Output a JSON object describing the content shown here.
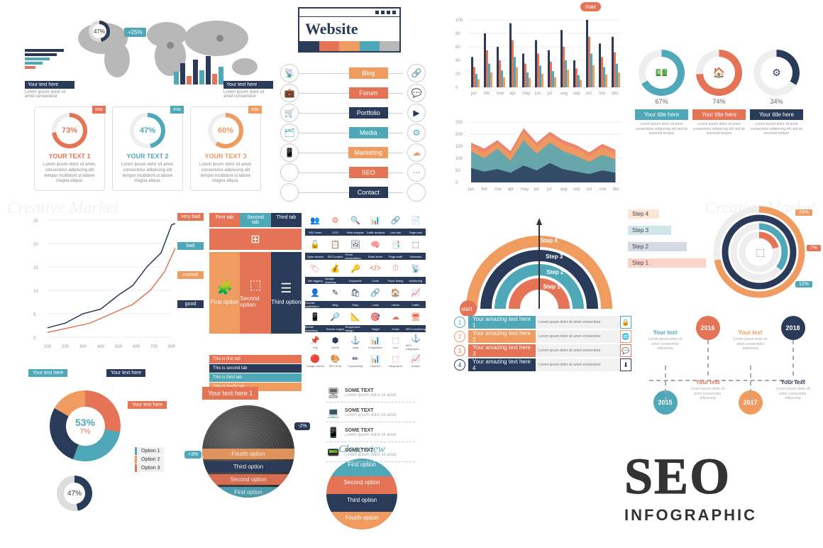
{
  "colors": {
    "navy": "#2a3b5a",
    "coral": "#e57355",
    "teal": "#4fa8b8",
    "orange": "#f09b5f",
    "grey": "#b8b8b8",
    "light_grey": "#dcdcdc",
    "dark": "#333333",
    "bg": "#ffffff"
  },
  "watermark": "Creative Market",
  "map": {
    "ring_pct": "47%",
    "badge": "+25%",
    "hbar_widths": [
      55,
      45,
      35,
      25,
      15
    ],
    "hbar_colors": [
      "#2a3b5a",
      "#2a3b5a",
      "#4fa8b8",
      "#4fa8b8",
      "#e57355"
    ],
    "minibar_heights": [
      18,
      30,
      12,
      35,
      20,
      40,
      15,
      25
    ],
    "minibar_colors": [
      "#4fa8b8",
      "#2a3b5a",
      "#e57355",
      "#2a3b5a",
      "#4fa8b8",
      "#2a3b5a",
      "#e57355",
      "#4fa8b8"
    ],
    "label_hdr1": "Your text here",
    "label_hdr2": "Your text here",
    "label_desc": "Lorem ipsum dolor sit amet consectetur"
  },
  "browser": {
    "title": "Website",
    "palette": [
      "#2a3b5a",
      "#e57355",
      "#f09b5f",
      "#4fa8b8",
      "#b8b8b8"
    ]
  },
  "vmenu": [
    {
      "icon_l": "📡",
      "label": "Blog",
      "color": "#f09b5f",
      "icon_r": "🔗"
    },
    {
      "icon_l": "💼",
      "label": "Forum",
      "color": "#e57355",
      "icon_r": "💬"
    },
    {
      "icon_l": "🛒",
      "label": "Portfolio",
      "color": "#2a3b5a",
      "icon_r": "▶"
    },
    {
      "icon_l": "🗂",
      "label": "Media",
      "color": "#4fa8b8",
      "icon_r": "⚙"
    },
    {
      "icon_l": "📱",
      "label": "Marketing",
      "color": "#f09b5f",
      "icon_r": "☁"
    },
    {
      "icon_l": "",
      "label": "SEO",
      "color": "#e57355",
      "icon_r": "⋯"
    },
    {
      "icon_l": "",
      "label": "Contact",
      "color": "#2a3b5a",
      "icon_r": ""
    }
  ],
  "pct_cards": [
    {
      "pct": "73%",
      "title": "YOUR TEXT 1",
      "color": "#e57355",
      "tag": "mix",
      "desc": "Lorem ipsum dolor sit amet, consectetur adipiscing elit tempor incididunt ut labore magna aliqua."
    },
    {
      "pct": "47%",
      "title": "YOUR TEXT 2",
      "color": "#4fa8b8",
      "tag": "mix",
      "desc": "Lorem ipsum dolor sit amet, consectetur adipiscing elit tempor incididunt ut labore magna aliqua."
    },
    {
      "pct": "60%",
      "title": "YOUR TEXT 3",
      "color": "#f09b5f",
      "tag": "mix",
      "desc": "Lorem ipsum dolor sit amet, consectetur adipiscing elit tempor incididunt ut labore magna aliqua."
    }
  ],
  "line_chart": {
    "x_ticks": [
      100,
      200,
      300,
      400,
      500,
      600,
      700,
      800
    ],
    "y_ticks": [
      0,
      5,
      10,
      15,
      20,
      25
    ],
    "series": [
      {
        "color": "#2a3b5a",
        "points": [
          [
            0,
            2
          ],
          [
            25,
            3
          ],
          [
            50,
            5
          ],
          [
            75,
            6
          ],
          [
            100,
            9
          ],
          [
            120,
            11
          ],
          [
            140,
            15
          ],
          [
            160,
            18
          ],
          [
            175,
            24
          ],
          [
            195,
            25
          ]
        ]
      },
      {
        "color": "#e57355",
        "points": [
          [
            0,
            1
          ],
          [
            30,
            2
          ],
          [
            60,
            3
          ],
          [
            90,
            5
          ],
          [
            120,
            7
          ],
          [
            145,
            10
          ],
          [
            165,
            14
          ],
          [
            180,
            19
          ],
          [
            195,
            24
          ]
        ]
      }
    ],
    "legend": [
      {
        "label": "very bad",
        "color": "#e57355"
      },
      {
        "label": "bad",
        "color": "#4fa8b8"
      },
      {
        "label": "normal",
        "color": "#f09b5f"
      },
      {
        "label": "good",
        "color": "#2a3b5a"
      }
    ]
  },
  "tabs": {
    "headers": [
      {
        "label": "First tab",
        "color": "#e57355"
      },
      {
        "label": "Second tab",
        "color": "#4fa8b8"
      },
      {
        "label": "Third tab",
        "color": "#2a3b5a"
      }
    ],
    "options": [
      {
        "label": "First option",
        "color": "#f09b5f",
        "icon": "🧩"
      },
      {
        "label": "Second option",
        "color": "#e57355",
        "icon": "⬚"
      },
      {
        "label": "Third option",
        "color": "#2a3b5a",
        "icon": "☰"
      }
    ],
    "strips": [
      {
        "label": "This is first tab",
        "color": "#e57355"
      },
      {
        "label": "This is second tab",
        "color": "#2a3b5a"
      },
      {
        "label": "This is third tab",
        "color": "#4fa8b8"
      },
      {
        "label": "This is fourth tab",
        "color": "#f09b5f"
      }
    ]
  },
  "icon_matrix": {
    "row_bg": [
      "#ffffff",
      "#2a3b5a",
      "#ffffff",
      "#2a3b5a",
      "#ffffff",
      "#2a3b5a",
      "#ffffff",
      "#2a3b5a",
      "#ffffff",
      "#2a3b5a"
    ],
    "cells": [
      [
        "👥",
        "⚙",
        "🔍",
        "📊",
        "🔗",
        "📄"
      ],
      [
        "SEO team",
        "CEO",
        "Web analysis",
        "Traffic analysis",
        "Link bait",
        "Page rank"
      ],
      [
        "🔓",
        "📋",
        "🖼",
        "🧠",
        "📑",
        "⬚"
      ],
      [
        "Open access",
        "SEO project",
        "Photo presentation",
        "Brain storm",
        "Page audit",
        "Htaccess"
      ],
      [
        "🏷",
        "💰",
        "🔑",
        "</>",
        "⏱",
        "📡"
      ],
      [
        "Site tagging",
        "Budget planning",
        "Keywords",
        "Code",
        "Place timing",
        "Monitoring"
      ],
      [
        "👤",
        "✎",
        "🛍",
        "🔗",
        "🏠",
        "📈"
      ],
      [
        "Domain registration",
        "Blog",
        "Shop",
        "Links",
        "Home",
        "Traffic"
      ],
      [
        "📱",
        "🔎",
        "📐",
        "🎯",
        "☁",
        "🖥"
      ],
      [
        "Mobile marketing",
        "Search engine",
        "Responsive design",
        "Target",
        "Hosts",
        "SEO monitoring"
      ]
    ]
  },
  "icon_row_bottom": {
    "cells": [
      "📌",
      "⬢",
      "⚓",
      "📊",
      "⬚",
      "⚓"
    ],
    "labels": [
      "Png",
      "Html5",
      "Jpeg",
      "Infographic",
      "Icon",
      "SEO infographic"
    ],
    "colors": [
      "#e57355",
      "#2a3b5a",
      "#f09b5f",
      "#4fa8b8",
      "#e57355",
      "#2a3b5a"
    ]
  },
  "icon_row_bottom2": {
    "cells": [
      "🔴",
      "🎨",
      "✏",
      "📊",
      "⬚",
      "📈"
    ],
    "labels": [
      "Google panda",
      "SEO tools",
      "Copywriting",
      "Layered",
      "Infographic",
      "Analys"
    ],
    "colors": [
      "#e57355",
      "#4fa8b8",
      "#2a3b5a",
      "#f09b5f",
      "#e57355",
      "#2a3b5a"
    ]
  },
  "donut": {
    "main_pct1": "53%",
    "main_pct2": "7%",
    "sec_pct": "47%",
    "labels": [
      "Your text here",
      "Your text here",
      "Your text here",
      "Your text here"
    ],
    "options": [
      "Option 1",
      "Option 2",
      "Option 3"
    ]
  },
  "globe": {
    "header": "Your text here 1",
    "bands": [
      {
        "label": "First option",
        "color": "#4fa8b8"
      },
      {
        "label": "Second option",
        "color": "#e57355"
      },
      {
        "label": "Third option",
        "color": "#2a3b5a"
      },
      {
        "label": "Fourth option",
        "color": "#f09b5f"
      }
    ],
    "pins": [
      {
        "label": "+3%",
        "color": "#4fa8b8"
      },
      {
        "label": "-2%",
        "color": "#2a3b5a"
      }
    ]
  },
  "close_view": {
    "title": "Close view",
    "slices": [
      {
        "label": "First option",
        "color": "#4fa8b8"
      },
      {
        "label": "Second option",
        "color": "#e57355"
      },
      {
        "label": "Third option",
        "color": "#2a3b5a"
      },
      {
        "label": "Fourth option",
        "color": "#f09b5f"
      }
    ]
  },
  "devices": [
    {
      "icon": "🖥",
      "h": "SOME TEXT",
      "d": "Lorem ipsum dolor sit amet"
    },
    {
      "icon": "💻",
      "h": "SOME TEXT",
      "d": "Lorem ipsum dolor sit amet"
    },
    {
      "icon": "📱",
      "h": "SOME TEXT",
      "d": "Lorem ipsum dolor sit amet"
    },
    {
      "icon": "📟",
      "h": "SOME TEXT",
      "d": "Lorem ipsum dolor sit amet"
    }
  ],
  "bar_top": {
    "months": [
      "jan",
      "feb",
      "mar",
      "apr",
      "may",
      "jun",
      "jul",
      "aug",
      "sep",
      "oct",
      "nov",
      "dec"
    ],
    "y_ticks": [
      0,
      20,
      40,
      60,
      80,
      100
    ],
    "series": [
      {
        "color": "#2a3b5a",
        "values": [
          45,
          80,
          60,
          95,
          50,
          70,
          55,
          85,
          40,
          100,
          65,
          75
        ]
      },
      {
        "color": "#e57355",
        "values": [
          30,
          55,
          40,
          70,
          35,
          50,
          38,
          60,
          28,
          75,
          45,
          52
        ]
      },
      {
        "color": "#4fa8b8",
        "values": [
          20,
          35,
          25,
          45,
          22,
          32,
          24,
          40,
          18,
          50,
          30,
          35
        ]
      },
      {
        "color": "#f09b5f",
        "values": [
          12,
          22,
          15,
          30,
          14,
          20,
          15,
          26,
          11,
          33,
          19,
          22
        ]
      }
    ],
    "max_label": "max",
    "max_index": 9
  },
  "area_chart": {
    "months": [
      "jan",
      "feb",
      "mar",
      "apr",
      "may",
      "jun",
      "jul",
      "aug",
      "sep",
      "oct",
      "nov",
      "dec"
    ],
    "y_ticks": [
      0,
      50,
      100,
      150,
      200,
      250
    ],
    "layers": [
      {
        "color": "#2a3b5a",
        "values": [
          60,
          45,
          55,
          40,
          70,
          50,
          80,
          55,
          45,
          35,
          50,
          40
        ]
      },
      {
        "color": "#4fa8b8",
        "values": [
          130,
          100,
          140,
          90,
          175,
          120,
          165,
          130,
          110,
          85,
          115,
          95
        ]
      },
      {
        "color": "#f09b5f",
        "values": [
          150,
          125,
          160,
          115,
          210,
          150,
          195,
          160,
          140,
          110,
          145,
          120
        ]
      },
      {
        "color": "#e57355",
        "values": [
          165,
          140,
          175,
          130,
          225,
          165,
          210,
          175,
          155,
          125,
          160,
          135
        ]
      }
    ]
  },
  "gauges": [
    {
      "pct": "67%",
      "angle": 241,
      "color": "#4fa8b8",
      "hdr": "Your title here",
      "hdr_bg": "#4fa8b8",
      "icon": "💵",
      "desc": "Lorem ipsum dolor sit amet consectetur adipiscing elit sed do eiusmod tempor"
    },
    {
      "pct": "74%",
      "angle": 266,
      "color": "#e57355",
      "hdr": "Your title here",
      "hdr_bg": "#e57355",
      "icon": "🏠",
      "desc": "Lorem ipsum dolor sit amet consectetur adipiscing elit sed do eiusmod tempor"
    },
    {
      "pct": "34%",
      "angle": 122,
      "color": "#2a3b5a",
      "hdr": "Your title here",
      "hdr_bg": "#2a3b5a",
      "icon": "⚙",
      "desc": "Lorem ipsum dolor sit amet consectetur adipiscing elit sed do eiusmod tempor"
    }
  ],
  "semi_steps": {
    "start": "start",
    "steps": [
      "Step 1",
      "Step 2",
      "Step 3",
      "Step 4"
    ],
    "colors": [
      "#e57355",
      "#4fa8b8",
      "#2a3b5a",
      "#f09b5f"
    ]
  },
  "step_bars": [
    {
      "label": "Step 4",
      "color": "#fde5d8",
      "w": 40
    },
    {
      "label": "Step 3",
      "color": "#cfe6ea",
      "w": 55
    },
    {
      "label": "Step 2",
      "color": "#d5dae4",
      "w": 75
    },
    {
      "label": "Step 1",
      "color": "#fad4c8",
      "w": 100
    }
  ],
  "radial": {
    "rings": [
      {
        "color": "#f09b5f",
        "pct": 24,
        "r": 60
      },
      {
        "color": "#2a3b5a",
        "pct": 45,
        "r": 48
      },
      {
        "color": "#4fa8b8",
        "pct": 12,
        "r": 36
      },
      {
        "color": "#e57355",
        "pct": 7,
        "r": 24
      }
    ],
    "labels": [
      {
        "txt": "24%",
        "color": "#f09b5f"
      },
      {
        "txt": "12%",
        "color": "#4fa8b8"
      },
      {
        "txt": "7%",
        "color": "#e57355"
      }
    ],
    "icon": "⬚"
  },
  "amz": {
    "rows": [
      {
        "n": "1",
        "label": "Your amazing text here 1",
        "color": "#4fa8b8",
        "icon": "🔒"
      },
      {
        "n": "2",
        "label": "Your amazing text here 2",
        "color": "#f09b5f",
        "icon": "🌐"
      },
      {
        "n": "3",
        "label": "Your amazing text here 3",
        "color": "#e57355",
        "icon": "💬"
      },
      {
        "n": "4",
        "label": "Your amazing text here 4",
        "color": "#2a3b5a",
        "icon": "⬇"
      }
    ],
    "bar_text": "Lorem ipsum dolor sit amet consectetur"
  },
  "timeline": [
    {
      "year": "2015",
      "color": "#4fa8b8",
      "txt": "Your text",
      "txt_color": "#4fa8b8",
      "pos": "bottom"
    },
    {
      "year": "2016",
      "color": "#e57355",
      "txt": "Your text",
      "txt_color": "#e57355",
      "pos": "top"
    },
    {
      "year": "2017",
      "color": "#f09b5f",
      "txt": "Your text",
      "txt_color": "#f09b5f",
      "pos": "bottom"
    },
    {
      "year": "2018",
      "color": "#2a3b5a",
      "txt": "Your text",
      "txt_color": "#2a3b5a",
      "pos": "top"
    }
  ],
  "timeline_desc": "Lorem ipsum dolor sit amet consectetur adipiscing",
  "seo": {
    "big": "SEO",
    "sub": "INFOGRAPHIC"
  }
}
